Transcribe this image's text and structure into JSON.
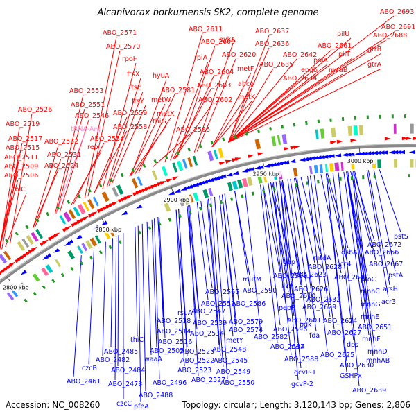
{
  "header": {
    "title": "Alcanivorax borkumensis SK2, complete genome"
  },
  "footer": {
    "accession": "Accession: NC_008260",
    "summary": "Topology: circular; Length: 3,120,143 bp; Genes: 2,806"
  },
  "colors": {
    "forward_strand": "#ff0000",
    "reverse_strand": "#0000ff",
    "rna_gene": "#ff88cc",
    "backbone": "#808080"
  },
  "kbp_ticks": [
    "2800 kbp",
    "2850 kbp",
    "2900 kbp",
    "2950 kbp",
    "3000 kbp"
  ],
  "labels_forward": [
    {
      "text": "ABO_2693"
    },
    {
      "text": "ABO_2691"
    },
    {
      "text": "ABO_2688"
    },
    {
      "text": "gtrB"
    },
    {
      "text": "gtrA"
    },
    {
      "text": "pilU"
    },
    {
      "text": "pilT"
    },
    {
      "text": "mvaB"
    },
    {
      "text": "ABO_2661"
    },
    {
      "text": "polA"
    },
    {
      "text": "ABO_2642"
    },
    {
      "text": "engb"
    },
    {
      "text": "ABO_2637"
    },
    {
      "text": "ABO_2636"
    },
    {
      "text": "ABO_2635"
    },
    {
      "text": "ABO_2634"
    },
    {
      "text": "ABO_2611"
    },
    {
      "text": "ABO_2609"
    },
    {
      "text": "pykA"
    },
    {
      "text": "ABO_2620"
    },
    {
      "text": "rpiA"
    },
    {
      "text": "metF"
    },
    {
      "text": "ABO_2604"
    },
    {
      "text": "ahcy"
    },
    {
      "text": "ABO_2603"
    },
    {
      "text": "metK"
    },
    {
      "text": "ABO_2602"
    },
    {
      "text": "ABO_2571"
    },
    {
      "text": "ABO_2570"
    },
    {
      "text": "rpoH"
    },
    {
      "text": "hyuA"
    },
    {
      "text": "ftsX"
    },
    {
      "text": "ABO_2581"
    },
    {
      "text": "ftsE"
    },
    {
      "text": "metW"
    },
    {
      "text": "ftsY"
    },
    {
      "text": "metX"
    },
    {
      "text": "thiG"
    },
    {
      "text": "ABO_2585"
    },
    {
      "text": "ABO_2553"
    },
    {
      "text": "ABO_2551"
    },
    {
      "text": "ABO_2546"
    },
    {
      "text": "ABO_2559"
    },
    {
      "text": "ABO_2558"
    },
    {
      "text": "ABO_2526"
    },
    {
      "text": "tRNA-Arg"
    },
    {
      "text": "ABO_2519"
    },
    {
      "text": "ABO_2554"
    },
    {
      "text": "ABO_2517"
    },
    {
      "text": "ABO_2532"
    },
    {
      "text": "rep"
    },
    {
      "text": "ABO_2515"
    },
    {
      "text": "ABO_2531"
    },
    {
      "text": "ABO_2511"
    },
    {
      "text": "ABO_2509"
    },
    {
      "text": "ABO_2524"
    },
    {
      "text": "ABO_2506"
    },
    {
      "text": "tolC"
    }
  ],
  "labels_reverse": [
    {
      "text": "pstS"
    },
    {
      "text": "ABO_2672"
    },
    {
      "text": "dsbA"
    },
    {
      "text": "ABO_2666"
    },
    {
      "text": "mtdA"
    },
    {
      "text": "ABO_2667"
    },
    {
      "text": "gap"
    },
    {
      "text": "ABO_2628"
    },
    {
      "text": "cc4"
    },
    {
      "text": "pstA"
    },
    {
      "text": "proC"
    },
    {
      "text": "ABO_2623"
    },
    {
      "text": "ABO_2647"
    },
    {
      "text": "arsH"
    },
    {
      "text": "mutM"
    },
    {
      "text": "ABO_2599"
    },
    {
      "text": "mnhC"
    },
    {
      "text": "ABO_2590"
    },
    {
      "text": "ilvA"
    },
    {
      "text": "ABO_2626"
    },
    {
      "text": "acr3"
    },
    {
      "text": "ABO_2565"
    },
    {
      "text": "ABO_2610"
    },
    {
      "text": "ABO_2632"
    },
    {
      "text": "mnhG"
    },
    {
      "text": "ABO_2552"
    },
    {
      "text": "ABO_2586"
    },
    {
      "text": "pepP"
    },
    {
      "text": "ABO_2629"
    },
    {
      "text": "mnhE"
    },
    {
      "text": "ABO_2547"
    },
    {
      "text": "ABO_2579"
    },
    {
      "text": "ABO_2601"
    },
    {
      "text": "rsuA"
    },
    {
      "text": "ABO_2518"
    },
    {
      "text": "ABO_2539"
    },
    {
      "text": "ABO_2574"
    },
    {
      "text": "ABO_2596"
    },
    {
      "text": "pgk"
    },
    {
      "text": "ABO_2624"
    },
    {
      "text": "ABO_2651"
    },
    {
      "text": "ABO_2514"
    },
    {
      "text": "ABO_2534"
    },
    {
      "text": "ABO_2582"
    },
    {
      "text": "fda"
    },
    {
      "text": "ABO_2627"
    },
    {
      "text": "mnhF"
    },
    {
      "text": "thiC"
    },
    {
      "text": "ABO_2516"
    },
    {
      "text": "metY"
    },
    {
      "text": "tktA"
    },
    {
      "text": "dps"
    },
    {
      "text": "ABO_2485"
    },
    {
      "text": "ABO_2505"
    },
    {
      "text": "ABO_2525"
    },
    {
      "text": "ABO_2548"
    },
    {
      "text": "ABO_2587"
    },
    {
      "text": "ABO_2625"
    },
    {
      "text": "mnhD"
    },
    {
      "text": "ABO_2482"
    },
    {
      "text": "waaA"
    },
    {
      "text": "ABO_2522"
    },
    {
      "text": "ABO_2545"
    },
    {
      "text": "ABO_2588"
    },
    {
      "text": "mnhAB"
    },
    {
      "text": "czcB"
    },
    {
      "text": "ABO_2484"
    },
    {
      "text": "ABO_2523"
    },
    {
      "text": "ABO_2549"
    },
    {
      "text": "gcvP-1"
    },
    {
      "text": "ABO_2630"
    },
    {
      "text": "ABO_2461"
    },
    {
      "text": "ABO_2478"
    },
    {
      "text": "ABO_2496"
    },
    {
      "text": "ABO_2527"
    },
    {
      "text": "ABO_2550"
    },
    {
      "text": "gcvP-2"
    },
    {
      "text": "GSHPx"
    },
    {
      "text": "czcC"
    },
    {
      "text": "ABO_2488"
    },
    {
      "text": "pfeA"
    },
    {
      "text": "ABO_2639"
    }
  ]
}
